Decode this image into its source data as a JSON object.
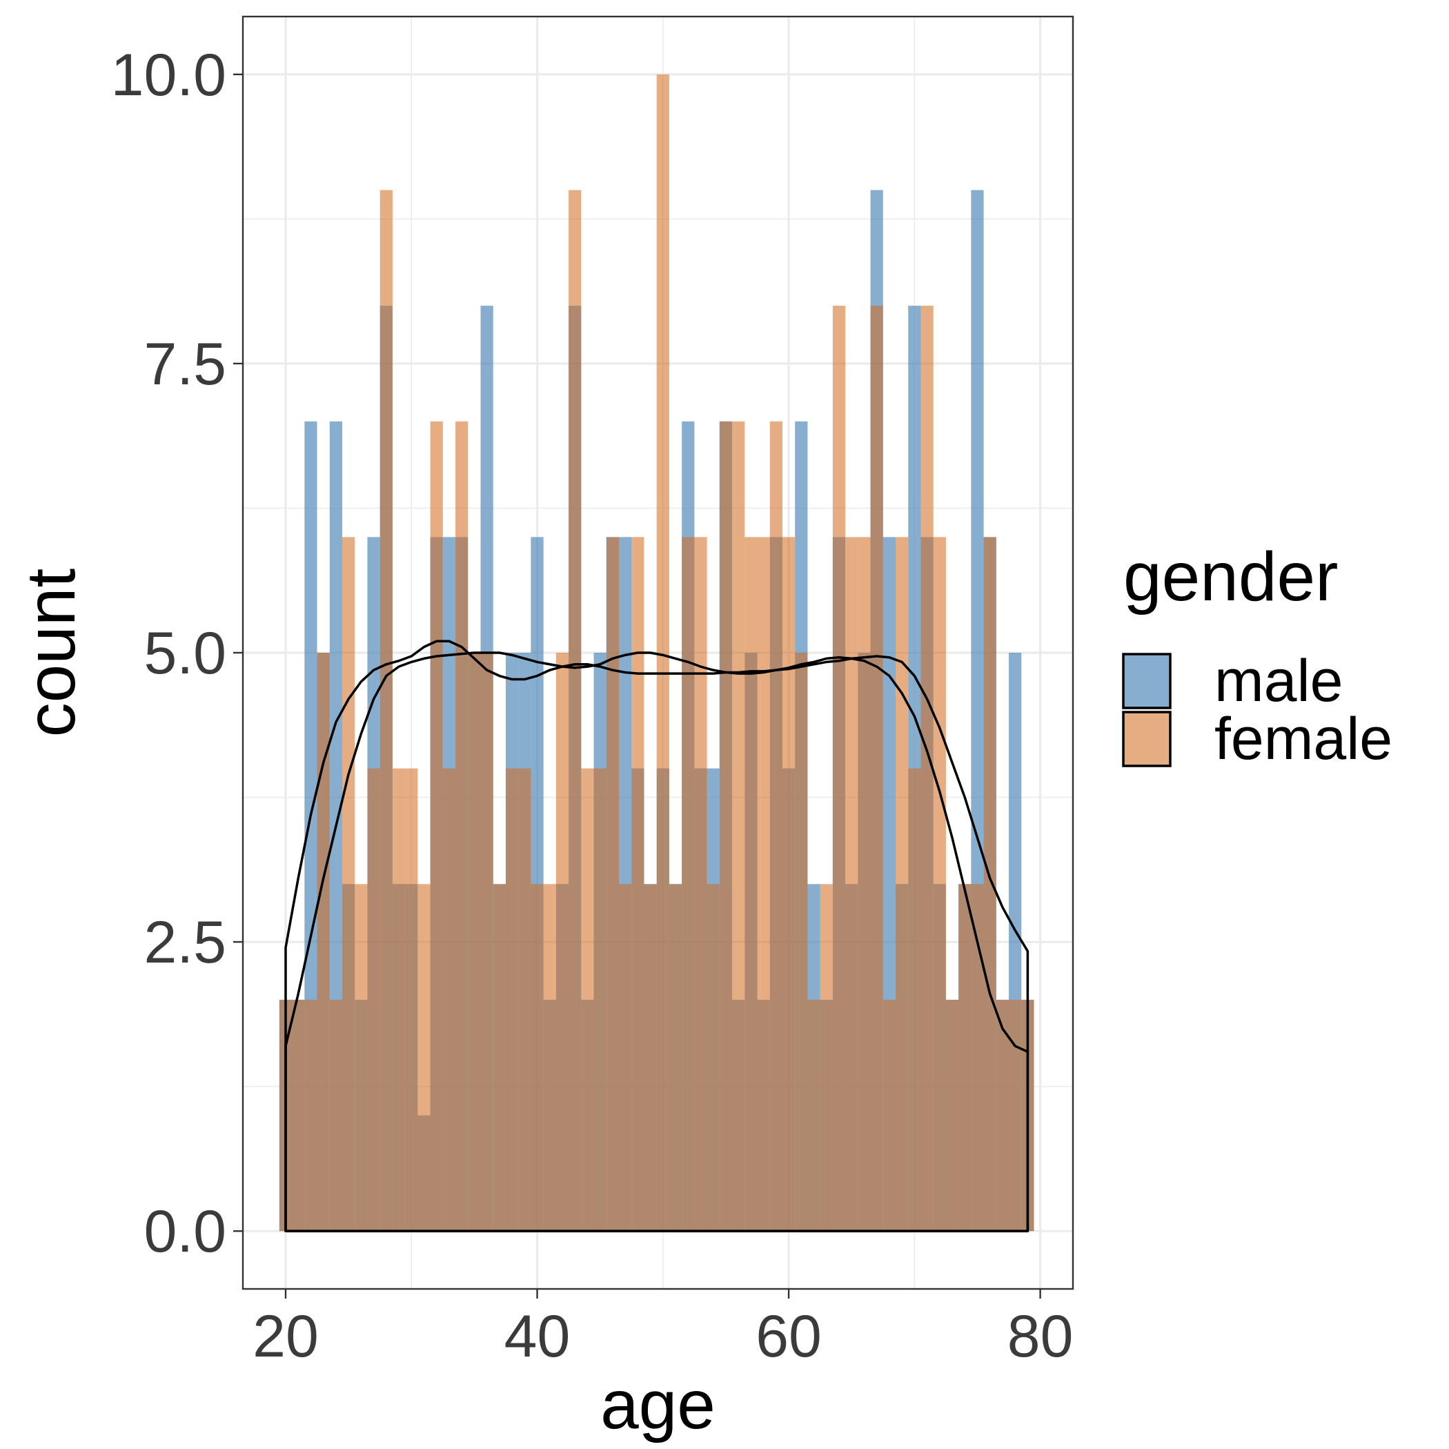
{
  "chart_data": {
    "type": "histogram",
    "xlabel": "age",
    "ylabel": "count",
    "xlim": [
      16.6,
      82.6
    ],
    "ylim": [
      -0.5,
      10.5
    ],
    "x_ticks": [
      {
        "value": 20,
        "label": "20"
      },
      {
        "value": 40,
        "label": "40"
      },
      {
        "value": 60,
        "label": "60"
      },
      {
        "value": 80,
        "label": "80"
      }
    ],
    "y_ticks": [
      {
        "value": 0,
        "label": "0.0"
      },
      {
        "value": 2.5,
        "label": "2.5"
      },
      {
        "value": 5,
        "label": "5.0"
      },
      {
        "value": 7.5,
        "label": "7.5"
      },
      {
        "value": 10,
        "label": "10.0"
      }
    ],
    "grid": true,
    "legend": {
      "title": "gender",
      "position": "right"
    },
    "series": [
      {
        "name": "male",
        "color": "#4682b4",
        "opacity": 0.65,
        "binwidth": 1,
        "x": [
          20,
          21,
          22,
          23,
          24,
          25,
          26,
          27,
          28,
          29,
          30,
          31,
          32,
          33,
          34,
          35,
          36,
          37,
          38,
          39,
          40,
          41,
          42,
          43,
          44,
          45,
          46,
          47,
          48,
          49,
          50,
          51,
          52,
          53,
          54,
          55,
          56,
          57,
          58,
          59,
          60,
          61,
          62,
          63,
          64,
          65,
          66,
          67,
          68,
          69,
          70,
          71,
          72,
          73,
          74,
          75,
          76,
          77,
          78,
          79
        ],
        "values": [
          2,
          2,
          7,
          5,
          7,
          3,
          2,
          6,
          8,
          3,
          3,
          1,
          6,
          6,
          6,
          5,
          8,
          3,
          5,
          5,
          6,
          2,
          3,
          8,
          2,
          5,
          6,
          6,
          4,
          3,
          4,
          3,
          7,
          4,
          4,
          7,
          2,
          5,
          2,
          6,
          4,
          7,
          3,
          2,
          6,
          3,
          5,
          9,
          6,
          3,
          8,
          6,
          3,
          2,
          3,
          9,
          6,
          2,
          5,
          2
        ]
      },
      {
        "name": "female",
        "color": "#d2691e",
        "opacity": 0.55,
        "binwidth": 1,
        "x": [
          20,
          21,
          22,
          23,
          24,
          25,
          26,
          27,
          28,
          29,
          30,
          31,
          32,
          33,
          34,
          35,
          36,
          37,
          38,
          39,
          40,
          41,
          42,
          43,
          44,
          45,
          46,
          47,
          48,
          49,
          50,
          51,
          52,
          53,
          54,
          55,
          56,
          57,
          58,
          59,
          60,
          61,
          62,
          63,
          64,
          65,
          66,
          67,
          68,
          69,
          70,
          71,
          72,
          73,
          74,
          75,
          76,
          77,
          78,
          79
        ],
        "values": [
          2,
          2,
          2,
          5,
          2,
          6,
          3,
          4,
          9,
          4,
          4,
          3,
          7,
          4,
          7,
          5,
          5,
          3,
          4,
          4,
          3,
          3,
          5,
          9,
          4,
          4,
          6,
          3,
          6,
          3,
          10,
          3,
          6,
          6,
          3,
          7,
          7,
          6,
          6,
          7,
          6,
          5,
          2,
          3,
          8,
          6,
          6,
          8,
          2,
          6,
          4,
          8,
          6,
          2,
          3,
          3,
          6,
          2,
          2,
          2
        ]
      }
    ],
    "density_curves": [
      {
        "name": "male",
        "x": [
          20,
          21,
          22,
          23,
          24,
          25,
          26,
          27,
          28,
          29,
          30,
          31,
          32,
          33,
          34,
          35,
          36,
          37,
          38,
          39,
          40,
          41,
          42,
          43,
          44,
          45,
          46,
          47,
          48,
          49,
          50,
          51,
          52,
          53,
          54,
          55,
          56,
          57,
          58,
          59,
          60,
          61,
          62,
          63,
          64,
          65,
          66,
          67,
          68,
          69,
          70,
          71,
          72,
          73,
          74,
          75,
          76,
          77,
          78,
          79
        ],
        "y": [
          2.45,
          3.05,
          3.6,
          4.05,
          4.4,
          4.6,
          4.75,
          4.85,
          4.9,
          4.93,
          4.97,
          5.05,
          5.1,
          5.1,
          5.05,
          4.95,
          4.85,
          4.8,
          4.77,
          4.77,
          4.8,
          4.85,
          4.88,
          4.9,
          4.9,
          4.88,
          4.85,
          4.83,
          4.82,
          4.82,
          4.82,
          4.82,
          4.82,
          4.82,
          4.82,
          4.83,
          4.83,
          4.84,
          4.84,
          4.85,
          4.86,
          4.88,
          4.9,
          4.92,
          4.93,
          4.95,
          4.96,
          4.97,
          4.96,
          4.92,
          4.8,
          4.6,
          4.35,
          4.05,
          3.75,
          3.4,
          3.05,
          2.8,
          2.6,
          2.42
        ]
      },
      {
        "name": "female",
        "x": [
          20,
          21,
          22,
          23,
          24,
          25,
          26,
          27,
          28,
          29,
          30,
          31,
          32,
          33,
          34,
          35,
          36,
          37,
          38,
          39,
          40,
          41,
          42,
          43,
          44,
          45,
          46,
          47,
          48,
          49,
          50,
          51,
          52,
          53,
          54,
          55,
          56,
          57,
          58,
          59,
          60,
          61,
          62,
          63,
          64,
          65,
          66,
          67,
          68,
          69,
          70,
          71,
          72,
          73,
          74,
          75,
          76,
          77,
          78,
          79
        ],
        "y": [
          1.6,
          2.05,
          2.55,
          3.05,
          3.5,
          3.95,
          4.3,
          4.6,
          4.8,
          4.88,
          4.92,
          4.95,
          4.97,
          4.98,
          4.99,
          5.0,
          5.0,
          5.0,
          4.98,
          4.95,
          4.92,
          4.9,
          4.88,
          4.87,
          4.88,
          4.9,
          4.95,
          4.98,
          5.0,
          5.0,
          4.98,
          4.95,
          4.92,
          4.88,
          4.85,
          4.83,
          4.82,
          4.82,
          4.83,
          4.85,
          4.87,
          4.9,
          4.92,
          4.95,
          4.96,
          4.95,
          4.93,
          4.88,
          4.8,
          4.65,
          4.45,
          4.15,
          3.8,
          3.4,
          2.95,
          2.5,
          2.05,
          1.75,
          1.6,
          1.55
        ]
      }
    ],
    "colors": {
      "male": "#4682b4",
      "female": "#d2691e",
      "grid": "#ebebeb",
      "axis_text": "#3b3b3b"
    }
  }
}
